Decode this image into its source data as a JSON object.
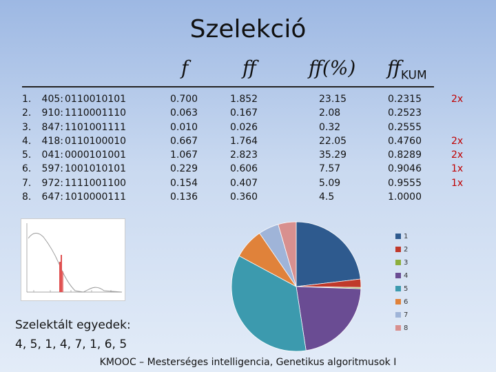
{
  "title": "Szelekció",
  "headers": {
    "f": "f",
    "ff": "ff",
    "ffpct": "ff(%)",
    "ffkum_main": "ff",
    "ffkum_sub": "KUM"
  },
  "rows": [
    {
      "idx": "1.",
      "val": "405:",
      "bits": "0110010101",
      "f": "0.700",
      "ff": "1.852",
      "pct": "23.15",
      "kum": "0.2315",
      "mult": "2x"
    },
    {
      "idx": "2.",
      "val": "910:",
      "bits": "1110001110",
      "f": "0.063",
      "ff": "0.167",
      "pct": "2.08",
      "kum": "0.2523",
      "mult": ""
    },
    {
      "idx": "3.",
      "val": "847:",
      "bits": "1101001111",
      "f": "0.010",
      "ff": "0.026",
      "pct": "0.32",
      "kum": "0.2555",
      "mult": ""
    },
    {
      "idx": "4.",
      "val": "418:",
      "bits": "0110100010",
      "f": "0.667",
      "ff": "1.764",
      "pct": "22.05",
      "kum": "0.4760",
      "mult": "2x"
    },
    {
      "idx": "5.",
      "val": "041:",
      "bits": "0000101001",
      "f": "1.067",
      "ff": "2.823",
      "pct": "35.29",
      "kum": "0.8289",
      "mult": "2x"
    },
    {
      "idx": "6.",
      "val": "597:",
      "bits": "1001010101",
      "f": "0.229",
      "ff": "0.606",
      "pct": "7.57",
      "kum": "0.9046",
      "mult": "1x"
    },
    {
      "idx": "7.",
      "val": "972:",
      "bits": "1111001100",
      "f": "0.154",
      "ff": "0.407",
      "pct": "5.09",
      "kum": "0.9555",
      "mult": "1x"
    },
    {
      "idx": "8.",
      "val": "647:",
      "bits": "1010000111",
      "f": "0.136",
      "ff": "0.360",
      "pct": "4.5",
      "kum": "1.0000",
      "mult": ""
    }
  ],
  "chart_data": {
    "type": "pie",
    "categories": [
      "1",
      "2",
      "3",
      "4",
      "5",
      "6",
      "7",
      "8"
    ],
    "values": [
      23.15,
      2.08,
      0.32,
      22.05,
      35.29,
      7.57,
      5.09,
      4.5
    ],
    "colors": [
      "#2e5a8e",
      "#c0392b",
      "#8cae3c",
      "#6a4c93",
      "#3c9aae",
      "#e0823a",
      "#9fb4d8",
      "#d8908f"
    ],
    "legend": "right"
  },
  "selected_label": "Szelektált egyedek:",
  "selected_sequence": "4, 5, 1, 4, 7, 1, 6, 5",
  "footer": "KMOOC – Mesterséges intelligencia, Genetikus algoritmusok I"
}
